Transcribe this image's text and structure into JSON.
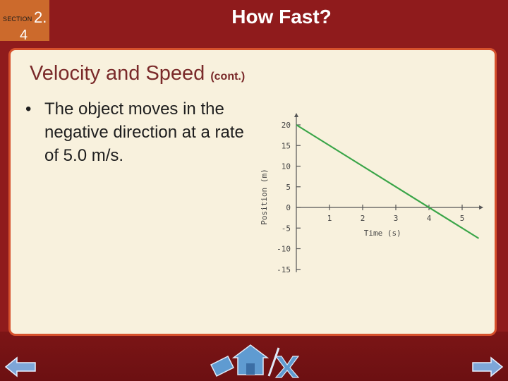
{
  "section": {
    "word": "SECTION",
    "number": "2.",
    "subnumber": "4"
  },
  "slide_title": "How Fast?",
  "heading": {
    "main": "Velocity and Speed",
    "cont": "(cont.)"
  },
  "bullet": {
    "marker": "•",
    "text": "The object moves in the negative direction at a rate of 5.0 m/s."
  },
  "chart_data": {
    "type": "line",
    "xlabel": "Time (s)",
    "ylabel": "Position (m)",
    "xlim": [
      0,
      5.3
    ],
    "ylim": [
      -15,
      20
    ],
    "x_ticks": [
      1,
      2,
      3,
      4,
      5
    ],
    "y_ticks": [
      20,
      15,
      10,
      5,
      0,
      -5,
      -10,
      -15
    ],
    "x_tick_labels": [
      "1",
      "2",
      "3",
      "4",
      "5"
    ],
    "y_tick_labels": [
      "20",
      "15",
      "10",
      "5",
      "0",
      "-5",
      "-10",
      "-15"
    ],
    "series": [
      {
        "x": [
          0,
          5.5
        ],
        "y": [
          20,
          -7.5
        ],
        "color": "#3aa548"
      }
    ]
  },
  "nav": {
    "back_icon": "left-arrow-icon",
    "forward_icon": "right-arrow-icon",
    "home_icon": "home-icon"
  },
  "colors": {
    "background": "#8f1b1c",
    "section_box": "#cc6a2c",
    "panel": "#f8f1dd",
    "panel_border": "#d6512c",
    "heading": "#7a2a2a",
    "line": "#3aa548"
  }
}
